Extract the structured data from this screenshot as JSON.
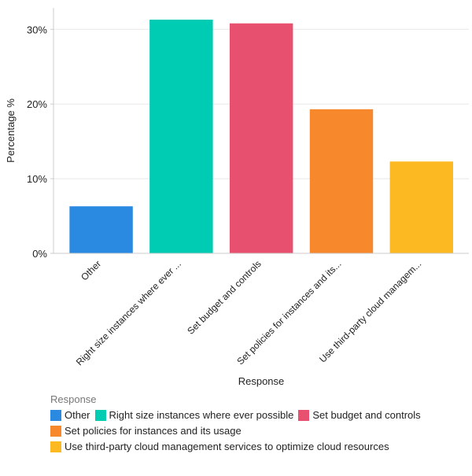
{
  "chart_data": {
    "type": "bar",
    "xlabel": "Response",
    "ylabel": "Percentage %",
    "ylim": [
      0,
      33
    ],
    "yticks": [
      0,
      10,
      20,
      30
    ],
    "ytick_labels": [
      "0%",
      "10%",
      "20%",
      "30%"
    ],
    "grid": true,
    "categories": [
      "Other",
      "Right size instances where ever possible",
      "Set budget and controls",
      "Set policies for instances and its usage",
      "Use third-party cloud management services to optimize cloud resources"
    ],
    "tick_labels": [
      "Other",
      "Right size instances where ever ...",
      "Set budget and controls",
      "Set policies for instances and its...",
      "Use third-party cloud managem..."
    ],
    "values": [
      6.3,
      31.3,
      30.8,
      19.3,
      12.3
    ],
    "colors": [
      "#2a8ae2",
      "#00cbb3",
      "#e8506f",
      "#f8882c",
      "#fdb922"
    ],
    "legend": {
      "title": "Response",
      "placement": "bottom-left"
    }
  }
}
